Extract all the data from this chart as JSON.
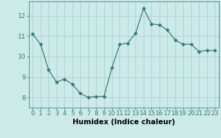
{
  "x": [
    0,
    1,
    2,
    3,
    4,
    5,
    6,
    7,
    8,
    9,
    10,
    11,
    12,
    13,
    14,
    15,
    16,
    17,
    18,
    19,
    20,
    21,
    22,
    23
  ],
  "y": [
    11.1,
    10.6,
    9.35,
    8.75,
    8.9,
    8.65,
    8.2,
    8.0,
    8.05,
    8.05,
    9.45,
    10.6,
    10.65,
    11.15,
    12.35,
    11.6,
    11.55,
    11.3,
    10.8,
    10.6,
    10.6,
    10.25,
    10.3,
    10.3
  ],
  "line_color": "#2e7d6e",
  "marker": "D",
  "marker_size": 2.5,
  "bg_color": "#cceae8",
  "grid_color": "#aacfcc",
  "xlabel": "Humidex (Indice chaleur)",
  "ylim": [
    7.5,
    12.7
  ],
  "xlim": [
    -0.5,
    23.5
  ],
  "yticks": [
    8,
    9,
    10,
    11,
    12
  ],
  "xticks": [
    0,
    1,
    2,
    3,
    4,
    5,
    6,
    7,
    8,
    9,
    10,
    11,
    12,
    13,
    14,
    15,
    16,
    17,
    18,
    19,
    20,
    21,
    22,
    23
  ],
  "tick_label_fontsize": 6.5,
  "xlabel_fontsize": 7.5,
  "spine_color": "#5a9a90"
}
